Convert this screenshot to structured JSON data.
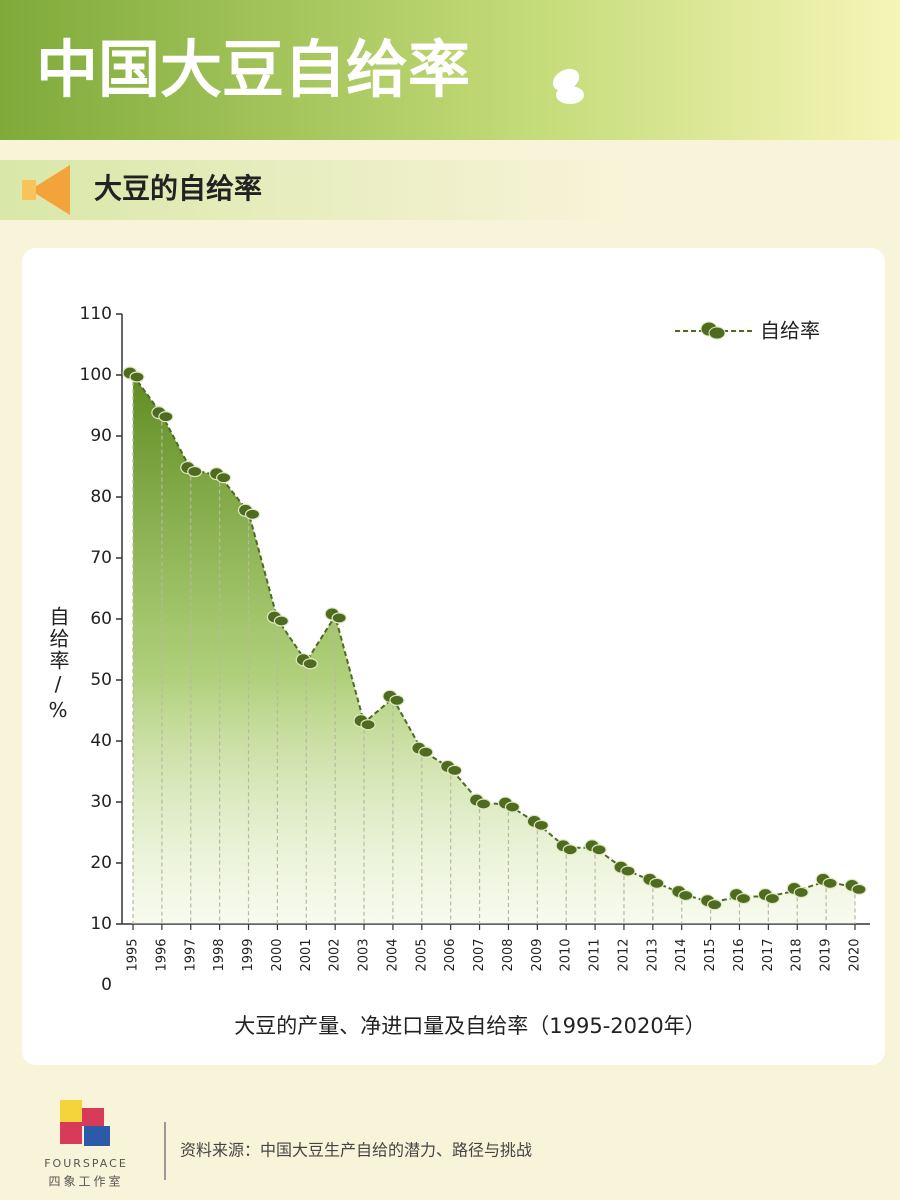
{
  "header": {
    "title": "中国大豆自给率",
    "subtitle": "大豆的自给率"
  },
  "chart_data": {
    "type": "line",
    "caption": "大豆的产量、净进口量及自给率（1995-2020年）",
    "y_label": "自给率/%",
    "categories": [
      "1995",
      "1996",
      "1997",
      "1998",
      "1999",
      "2000",
      "2001",
      "2002",
      "2003",
      "2004",
      "2005",
      "2006",
      "2007",
      "2008",
      "2009",
      "2010",
      "2011",
      "2012",
      "2013",
      "2014",
      "2015",
      "2016",
      "2017",
      "2018",
      "2019",
      "2020"
    ],
    "series": [
      {
        "name": "自给率",
        "color": "#4e6b1f",
        "values": [
          100,
          93.5,
          84.5,
          83.5,
          77.5,
          60,
          53,
          60.5,
          43,
          47,
          38.5,
          35.5,
          30,
          29.5,
          26.5,
          22.5,
          22.5,
          19,
          17,
          15,
          13.5,
          14.5,
          14.5,
          15.5,
          17,
          16
        ]
      }
    ],
    "ylim": [
      10,
      110
    ],
    "yticks": [
      0,
      10,
      20,
      30,
      40,
      50,
      60,
      70,
      80,
      90,
      100,
      110
    ],
    "legend": "upper right"
  },
  "footer": {
    "brand": "FOURSPACE",
    "brand_cn": "四象工作室",
    "source": "资料来源：中国大豆生产自给的潜力、路径与挑战"
  }
}
